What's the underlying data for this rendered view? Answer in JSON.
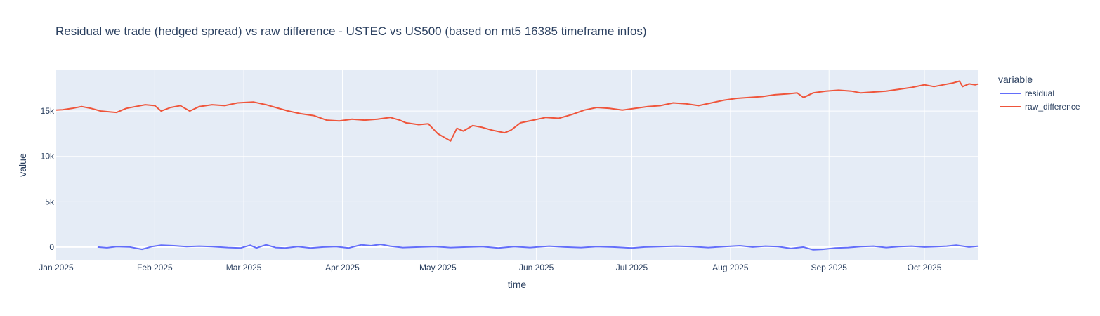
{
  "chart_data": {
    "type": "line",
    "title": "Residual we trade (hedged spread) vs raw difference - USTEC vs US500 (based on mt5 16385 timeframe infos)",
    "xlabel": "time",
    "ylabel": "value",
    "x_range": [
      "2025-01-01",
      "2025-10-18"
    ],
    "ylim": [
      -1400,
      19500
    ],
    "x_ticks": [
      {
        "date": "2025-01-01",
        "label": "Jan 2025"
      },
      {
        "date": "2025-02-01",
        "label": "Feb 2025"
      },
      {
        "date": "2025-03-01",
        "label": "Mar 2025"
      },
      {
        "date": "2025-04-01",
        "label": "Apr 2025"
      },
      {
        "date": "2025-05-01",
        "label": "May 2025"
      },
      {
        "date": "2025-06-01",
        "label": "Jun 2025"
      },
      {
        "date": "2025-07-01",
        "label": "Jul 2025"
      },
      {
        "date": "2025-08-01",
        "label": "Aug 2025"
      },
      {
        "date": "2025-09-01",
        "label": "Sep 2025"
      },
      {
        "date": "2025-10-01",
        "label": "Oct 2025"
      }
    ],
    "y_ticks": [
      {
        "value": 0,
        "label": "0"
      },
      {
        "value": 5000,
        "label": "5k"
      },
      {
        "value": 10000,
        "label": "10k"
      },
      {
        "value": 15000,
        "label": "15k"
      }
    ],
    "grid": true,
    "legend": {
      "title": "variable",
      "placement": "right"
    },
    "series": [
      {
        "name": "residual",
        "color": "#636efa",
        "points": [
          [
            "2025-01-14",
            0
          ],
          [
            "2025-01-17",
            -80
          ],
          [
            "2025-01-20",
            50
          ],
          [
            "2025-01-24",
            20
          ],
          [
            "2025-01-28",
            -250
          ],
          [
            "2025-01-31",
            50
          ],
          [
            "2025-02-03",
            200
          ],
          [
            "2025-02-07",
            150
          ],
          [
            "2025-02-11",
            50
          ],
          [
            "2025-02-15",
            100
          ],
          [
            "2025-02-19",
            50
          ],
          [
            "2025-02-24",
            -50
          ],
          [
            "2025-02-28",
            -100
          ],
          [
            "2025-03-03",
            200
          ],
          [
            "2025-03-05",
            -100
          ],
          [
            "2025-03-08",
            250
          ],
          [
            "2025-03-11",
            -50
          ],
          [
            "2025-03-14",
            -100
          ],
          [
            "2025-03-18",
            50
          ],
          [
            "2025-03-22",
            -100
          ],
          [
            "2025-03-26",
            0
          ],
          [
            "2025-03-30",
            50
          ],
          [
            "2025-04-03",
            -100
          ],
          [
            "2025-04-07",
            250
          ],
          [
            "2025-04-10",
            150
          ],
          [
            "2025-04-13",
            300
          ],
          [
            "2025-04-16",
            100
          ],
          [
            "2025-04-20",
            -50
          ],
          [
            "2025-04-25",
            0
          ],
          [
            "2025-04-30",
            50
          ],
          [
            "2025-05-05",
            -50
          ],
          [
            "2025-05-10",
            0
          ],
          [
            "2025-05-15",
            50
          ],
          [
            "2025-05-20",
            -100
          ],
          [
            "2025-05-25",
            50
          ],
          [
            "2025-05-30",
            -50
          ],
          [
            "2025-06-05",
            100
          ],
          [
            "2025-06-10",
            0
          ],
          [
            "2025-06-15",
            -50
          ],
          [
            "2025-06-20",
            50
          ],
          [
            "2025-06-25",
            0
          ],
          [
            "2025-07-01",
            -100
          ],
          [
            "2025-07-05",
            0
          ],
          [
            "2025-07-10",
            50
          ],
          [
            "2025-07-15",
            100
          ],
          [
            "2025-07-20",
            50
          ],
          [
            "2025-07-25",
            -50
          ],
          [
            "2025-07-30",
            50
          ],
          [
            "2025-08-04",
            150
          ],
          [
            "2025-08-08",
            0
          ],
          [
            "2025-08-12",
            100
          ],
          [
            "2025-08-16",
            50
          ],
          [
            "2025-08-20",
            -150
          ],
          [
            "2025-08-24",
            0
          ],
          [
            "2025-08-27",
            -300
          ],
          [
            "2025-08-30",
            -250
          ],
          [
            "2025-09-03",
            -100
          ],
          [
            "2025-09-07",
            -50
          ],
          [
            "2025-09-11",
            50
          ],
          [
            "2025-09-15",
            100
          ],
          [
            "2025-09-19",
            -50
          ],
          [
            "2025-09-23",
            50
          ],
          [
            "2025-09-27",
            100
          ],
          [
            "2025-10-01",
            0
          ],
          [
            "2025-10-05",
            50
          ],
          [
            "2025-10-08",
            100
          ],
          [
            "2025-10-11",
            200
          ],
          [
            "2025-10-15",
            0
          ],
          [
            "2025-10-18",
            100
          ]
        ]
      },
      {
        "name": "raw_difference",
        "color": "#ef553b",
        "points": [
          [
            "2025-01-01",
            15100
          ],
          [
            "2025-01-03",
            15150
          ],
          [
            "2025-01-06",
            15300
          ],
          [
            "2025-01-09",
            15500
          ],
          [
            "2025-01-12",
            15300
          ],
          [
            "2025-01-15",
            15000
          ],
          [
            "2025-01-18",
            14900
          ],
          [
            "2025-01-20",
            14850
          ],
          [
            "2025-01-23",
            15300
          ],
          [
            "2025-01-26",
            15500
          ],
          [
            "2025-01-29",
            15700
          ],
          [
            "2025-02-01",
            15600
          ],
          [
            "2025-02-03",
            15000
          ],
          [
            "2025-02-06",
            15400
          ],
          [
            "2025-02-09",
            15600
          ],
          [
            "2025-02-12",
            15000
          ],
          [
            "2025-02-15",
            15500
          ],
          [
            "2025-02-19",
            15700
          ],
          [
            "2025-02-23",
            15600
          ],
          [
            "2025-02-27",
            15900
          ],
          [
            "2025-03-04",
            16000
          ],
          [
            "2025-03-08",
            15700
          ],
          [
            "2025-03-11",
            15400
          ],
          [
            "2025-03-15",
            15000
          ],
          [
            "2025-03-19",
            14700
          ],
          [
            "2025-03-23",
            14500
          ],
          [
            "2025-03-27",
            14000
          ],
          [
            "2025-03-31",
            13900
          ],
          [
            "2025-04-04",
            14100
          ],
          [
            "2025-04-08",
            14000
          ],
          [
            "2025-04-12",
            14100
          ],
          [
            "2025-04-16",
            14300
          ],
          [
            "2025-04-19",
            14000
          ],
          [
            "2025-04-21",
            13700
          ],
          [
            "2025-04-25",
            13500
          ],
          [
            "2025-04-28",
            13600
          ],
          [
            "2025-05-01",
            12500
          ],
          [
            "2025-05-03",
            12100
          ],
          [
            "2025-05-05",
            11700
          ],
          [
            "2025-05-07",
            13100
          ],
          [
            "2025-05-09",
            12800
          ],
          [
            "2025-05-12",
            13400
          ],
          [
            "2025-05-15",
            13200
          ],
          [
            "2025-05-18",
            12900
          ],
          [
            "2025-05-22",
            12600
          ],
          [
            "2025-05-24",
            12900
          ],
          [
            "2025-05-27",
            13700
          ],
          [
            "2025-05-31",
            14000
          ],
          [
            "2025-06-04",
            14300
          ],
          [
            "2025-06-08",
            14200
          ],
          [
            "2025-06-12",
            14600
          ],
          [
            "2025-06-16",
            15100
          ],
          [
            "2025-06-20",
            15400
          ],
          [
            "2025-06-24",
            15300
          ],
          [
            "2025-06-28",
            15100
          ],
          [
            "2025-07-02",
            15300
          ],
          [
            "2025-07-06",
            15500
          ],
          [
            "2025-07-10",
            15600
          ],
          [
            "2025-07-14",
            15900
          ],
          [
            "2025-07-18",
            15800
          ],
          [
            "2025-07-22",
            15600
          ],
          [
            "2025-07-26",
            15900
          ],
          [
            "2025-07-30",
            16200
          ],
          [
            "2025-08-03",
            16400
          ],
          [
            "2025-08-07",
            16500
          ],
          [
            "2025-08-11",
            16600
          ],
          [
            "2025-08-15",
            16800
          ],
          [
            "2025-08-19",
            16900
          ],
          [
            "2025-08-22",
            17000
          ],
          [
            "2025-08-24",
            16500
          ],
          [
            "2025-08-27",
            17000
          ],
          [
            "2025-08-31",
            17200
          ],
          [
            "2025-09-04",
            17300
          ],
          [
            "2025-09-08",
            17200
          ],
          [
            "2025-09-11",
            17000
          ],
          [
            "2025-09-15",
            17100
          ],
          [
            "2025-09-19",
            17200
          ],
          [
            "2025-09-23",
            17400
          ],
          [
            "2025-09-27",
            17600
          ],
          [
            "2025-10-01",
            17900
          ],
          [
            "2025-10-04",
            17700
          ],
          [
            "2025-10-07",
            17900
          ],
          [
            "2025-10-10",
            18100
          ],
          [
            "2025-10-12",
            18300
          ],
          [
            "2025-10-13",
            17700
          ],
          [
            "2025-10-15",
            18000
          ],
          [
            "2025-10-17",
            17900
          ],
          [
            "2025-10-18",
            18000
          ]
        ]
      }
    ]
  }
}
